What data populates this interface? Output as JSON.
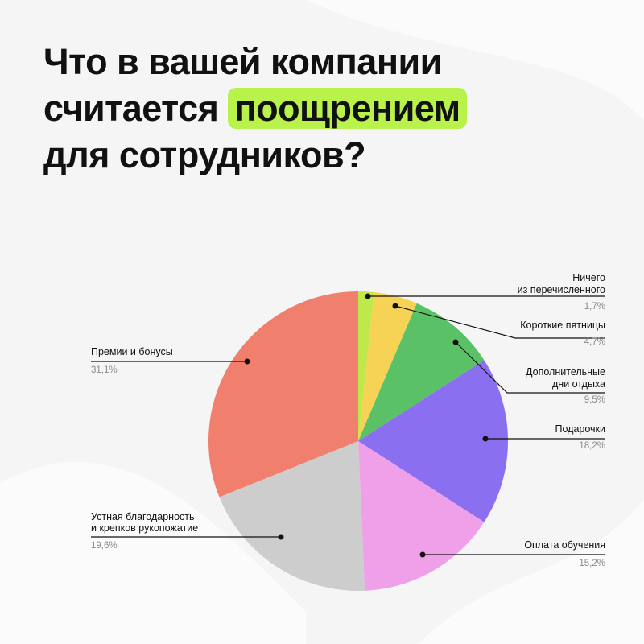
{
  "title": {
    "line1": "Что в вашей компании",
    "line2_pre": "считается",
    "line2_highlight": "поощрением",
    "line3": "для сотрудников?"
  },
  "colors": {
    "background": "#f5f5f6",
    "highlight": "#b9f24b"
  },
  "chart_data": {
    "type": "pie",
    "slices": [
      {
        "label": [
          "Ничего",
          "из перечисленного"
        ],
        "value": 1.7,
        "value_label": "1,7%",
        "color": "#bfe84a"
      },
      {
        "label": [
          "Короткие пятницы"
        ],
        "value": 4.7,
        "value_label": "4,7%",
        "color": "#f6d354"
      },
      {
        "label": [
          "Дополнительные",
          "дни отдыха"
        ],
        "value": 9.5,
        "value_label": "9,5%",
        "color": "#5bc166"
      },
      {
        "label": [
          "Подарочки"
        ],
        "value": 18.2,
        "value_label": "18,2%",
        "color": "#8a6ff0"
      },
      {
        "label": [
          "Оплата обучения"
        ],
        "value": 15.2,
        "value_label": "15,2%",
        "color": "#f09fe9"
      },
      {
        "label": [
          "Устная благодарность",
          "и крепков рукопожатие"
        ],
        "value": 19.6,
        "value_label": "19,6%",
        "color": "#cdcdcd"
      },
      {
        "label": [
          "Премии и бонусы"
        ],
        "value": 31.1,
        "value_label": "31,1%",
        "color": "#f07f6d"
      }
    ]
  }
}
